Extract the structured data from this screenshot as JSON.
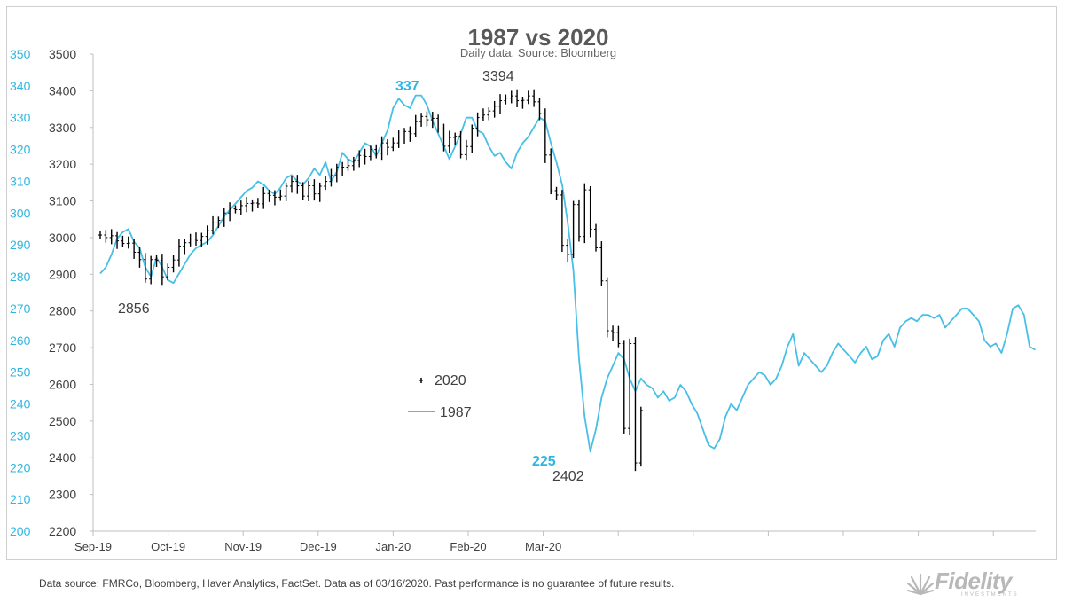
{
  "chart_data": {
    "type": "line",
    "title": "1987 vs 2020",
    "subtitle": "Daily data.  Source: Bloomberg",
    "x_tick_labels": [
      "Sep-19",
      "Oct-19",
      "Nov-19",
      "Dec-19",
      "Jan-20",
      "Feb-20",
      "Mar-20"
    ],
    "y_left": {
      "range": [
        200,
        350
      ],
      "ticks": [
        200,
        210,
        220,
        230,
        240,
        250,
        260,
        270,
        280,
        290,
        300,
        310,
        320,
        330,
        340,
        350
      ]
    },
    "y_right": {
      "range": [
        2200,
        3500
      ],
      "ticks": [
        2200,
        2300,
        2400,
        2500,
        2600,
        2700,
        2800,
        2900,
        3000,
        3100,
        3200,
        3300,
        3400,
        3500
      ]
    },
    "legend": {
      "position": "center",
      "entries": [
        "2020",
        "1987"
      ]
    },
    "series": [
      {
        "name": "1987",
        "axis": "left",
        "color": "#48bfe6",
        "style": "line",
        "values": [
          281,
          283,
          287,
          292,
          294,
          295,
          291,
          289,
          283,
          280,
          286,
          283,
          279,
          278,
          281,
          284,
          287,
          289,
          290,
          291,
          293,
          296,
          299,
          301,
          303,
          305,
          307,
          308,
          310,
          309,
          307,
          306,
          308,
          311,
          312,
          310,
          309,
          311,
          314,
          312,
          316,
          310,
          313,
          319,
          317,
          316,
          319,
          322,
          321,
          318,
          322,
          326,
          333,
          336,
          334,
          333,
          337,
          337,
          334,
          329,
          325,
          321,
          317,
          321,
          325,
          330,
          330,
          326,
          325,
          321,
          318,
          319,
          316,
          314,
          319,
          322,
          324,
          327,
          330,
          329,
          322,
          316,
          309,
          297,
          282,
          254,
          236,
          225,
          232,
          242,
          248,
          252,
          256,
          254,
          248,
          244,
          248,
          246,
          245,
          242,
          244,
          241,
          242,
          246,
          244,
          240,
          237,
          232,
          227,
          226,
          229,
          236,
          240,
          238,
          242,
          246,
          248,
          250,
          249,
          246,
          248,
          252,
          258,
          262,
          252,
          256,
          254,
          252,
          250,
          252,
          256,
          259,
          257,
          255,
          253,
          256,
          258,
          254,
          255,
          260,
          262,
          258,
          264,
          266,
          267,
          266,
          268,
          268,
          267,
          268,
          264,
          266,
          268,
          270,
          270,
          268,
          266,
          260,
          258,
          259,
          256,
          262,
          270,
          271,
          268,
          258,
          257
        ]
      },
      {
        "name": "2020",
        "axis": "right",
        "color": "#000000",
        "style": "ohlc",
        "values": [
          3007,
          3000,
          3005,
          2991,
          2984,
          2985,
          2960,
          2940,
          2887,
          2940,
          2938,
          2893,
          2919,
          2939,
          2977,
          2986,
          2996,
          2992,
          3003,
          3019,
          3040,
          3047,
          3067,
          3078,
          3076,
          3087,
          3093,
          3094,
          3092,
          3120,
          3115,
          3110,
          3113,
          3140,
          3153,
          3141,
          3113,
          3141,
          3119,
          3140,
          3153,
          3169,
          3191,
          3192,
          3196,
          3210,
          3224,
          3221,
          3240,
          3230,
          3258,
          3246,
          3258,
          3274,
          3289,
          3283,
          3316,
          3330,
          3321,
          3325,
          3296,
          3249,
          3273,
          3276,
          3226,
          3248,
          3298,
          3327,
          3334,
          3345,
          3358,
          3373,
          3380,
          3386,
          3373,
          3374,
          3386,
          3370,
          3338,
          3225,
          3128,
          3116,
          2979,
          2954,
          3090,
          3003,
          3130,
          3023,
          2972,
          2882,
          2746,
          2741,
          2711,
          2480,
          2711,
          2386,
          2529
        ]
      }
    ],
    "annotations": [
      {
        "text": "337",
        "series": "1987"
      },
      {
        "text": "3394",
        "series": "2020"
      },
      {
        "text": "2856",
        "series": "2020"
      },
      {
        "text": "225",
        "series": "1987"
      },
      {
        "text": "2402",
        "series": "2020"
      }
    ]
  },
  "footer": {
    "text": "Data source: FMRCo, Bloomberg, Haver Analytics, FactSet.  Data as of 03/16/2020. Past performance is no guarantee of future results."
  },
  "logo": {
    "word": "Fidelity",
    "subtext": "INVESTMENTS"
  }
}
